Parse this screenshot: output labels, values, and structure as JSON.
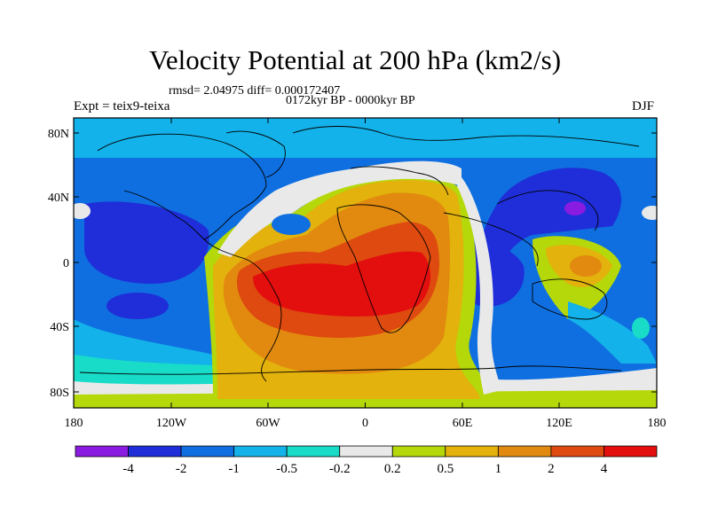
{
  "title": "Velocity Potential at 200 hPa (km2/s)",
  "stats": "rmsd= 2.04975 diff= 0.000172407",
  "period": "0172kyr BP - 0000kyr BP",
  "experiment": "Expt = teix9-teixa",
  "season": "DJF",
  "axes": {
    "lat_ticks": [
      "80N",
      "40N",
      "0",
      "40S",
      "80S"
    ],
    "lon_ticks": [
      "180",
      "120W",
      "60W",
      "0",
      "60E",
      "120E",
      "180"
    ]
  },
  "colorbar": {
    "labels": [
      "-4",
      "-2",
      "-1",
      "-0.5",
      "-0.2",
      "0.2",
      "0.5",
      "1",
      "2",
      "4"
    ],
    "colors": [
      "#8a1be0",
      "#1f2ed8",
      "#0f6fe0",
      "#14b2ea",
      "#18dcc8",
      "#e9e9e9",
      "#b4d80a",
      "#e3b20c",
      "#e28a0f",
      "#de4a0f",
      "#e30e0e"
    ]
  }
}
